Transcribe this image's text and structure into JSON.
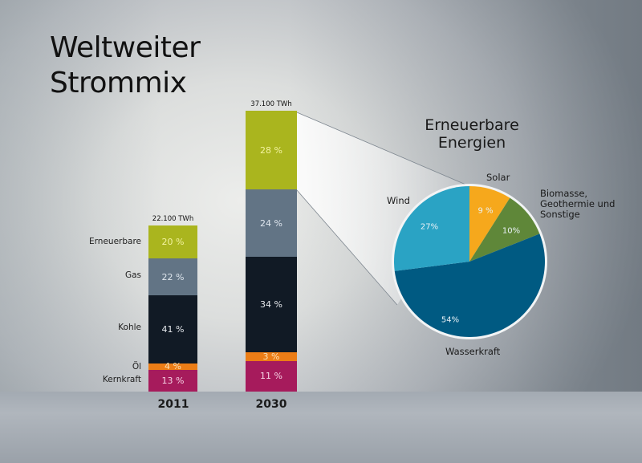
{
  "title": {
    "line1": "Weltweiter",
    "line2": "Strommix"
  },
  "bars": [
    {
      "year": "2011",
      "total": "22.100 TWh",
      "segments": [
        {
          "name": "Erneuerbare",
          "label": "20 %",
          "value": 20,
          "color": "#aab51e",
          "text_color": "#f3f3a0"
        },
        {
          "name": "Gas",
          "label": "22 %",
          "value": 22,
          "color": "#627485",
          "text_color": "#dfe6ee"
        },
        {
          "name": "Kohle",
          "label": "41 %",
          "value": 41,
          "color": "#111a25",
          "text_color": "#e5e8ec"
        },
        {
          "name": "Öl",
          "label": "4 %",
          "value": 4,
          "color": "#ec7d16",
          "text_color": "#fbe1b5"
        },
        {
          "name": "Kernkraft",
          "label": "13 %",
          "value": 13,
          "color": "#a61b5c",
          "text_color": "#f6d5e6"
        }
      ]
    },
    {
      "year": "2030",
      "total": "37.100 TWh",
      "segments": [
        {
          "name": "Erneuerbare",
          "label": "28 %",
          "value": 28,
          "color": "#aab51e",
          "text_color": "#f3f3a0"
        },
        {
          "name": "Gas",
          "label": "24 %",
          "value": 24,
          "color": "#627485",
          "text_color": "#dfe6ee"
        },
        {
          "name": "Kohle",
          "label": "34 %",
          "value": 34,
          "color": "#111a25",
          "text_color": "#e5e8ec"
        },
        {
          "name": "Öl",
          "label": "3 %",
          "value": 3,
          "color": "#ec7d16",
          "text_color": "#fbe1b5"
        },
        {
          "name": "Kernkraft",
          "label": "11 %",
          "value": 11,
          "color": "#a61b5c",
          "text_color": "#f6d5e6"
        }
      ]
    }
  ],
  "category_labels": [
    "Erneuerbare",
    "Gas",
    "Kohle",
    "Öl",
    "Kernkraft"
  ],
  "pie": {
    "title_line1": "Erneuerbare",
    "title_line2": "Energien",
    "slices": [
      {
        "name": "Solar",
        "label": "9 %",
        "value": 9,
        "color": "#f6a81c"
      },
      {
        "name": "Biomasse, Geothermie und Sonstige",
        "label": "10%",
        "value": 10,
        "color": "#5f8739"
      },
      {
        "name": "Wasserkraft",
        "label": "54%",
        "value": 54,
        "color": "#005a82"
      },
      {
        "name": "Wind",
        "label": "27%",
        "value": 27,
        "color": "#2aa3c4"
      }
    ],
    "labels": {
      "solar": "Solar",
      "biomasse_1": "Biomasse,",
      "biomasse_2": "Geothermie und",
      "biomasse_3": "Sonstige",
      "wasserkraft": "Wasserkraft",
      "wind": "Wind"
    }
  },
  "chart_data": [
    {
      "type": "bar",
      "stacked": true,
      "title": "Weltweiter Strommix",
      "categories": [
        "2011",
        "2030"
      ],
      "totals": [
        "22.100 TWh",
        "37.100 TWh"
      ],
      "unit": "%",
      "series": [
        {
          "name": "Erneuerbare",
          "values": [
            20,
            28
          ]
        },
        {
          "name": "Gas",
          "values": [
            22,
            24
          ]
        },
        {
          "name": "Kohle",
          "values": [
            41,
            34
          ]
        },
        {
          "name": "Öl",
          "values": [
            4,
            3
          ]
        },
        {
          "name": "Kernkraft",
          "values": [
            13,
            11
          ]
        }
      ],
      "xlabel": "",
      "ylabel": "",
      "grid": false
    },
    {
      "type": "pie",
      "title": "Erneuerbare Energien",
      "categories": [
        "Solar",
        "Biomasse, Geothermie und Sonstige",
        "Wasserkraft",
        "Wind"
      ],
      "values": [
        9,
        10,
        54,
        27
      ],
      "unit": "%"
    }
  ]
}
